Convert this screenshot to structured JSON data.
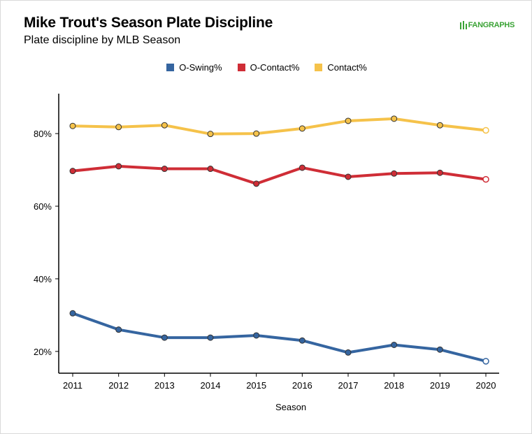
{
  "header": {
    "title": "Mike Trout's Season Plate Discipline",
    "subtitle": "Plate discipline by MLB Season",
    "logo_text": "FANGRAPHS",
    "logo_color": "#3aa335"
  },
  "chart_data": {
    "type": "line",
    "title": "Mike Trout's Season Plate Discipline",
    "subtitle": "Plate discipline by MLB Season",
    "xlabel": "Season",
    "ylabel": "",
    "x": [
      2011,
      2012,
      2013,
      2014,
      2015,
      2016,
      2017,
      2018,
      2019,
      2020
    ],
    "x_tick_labels": [
      "2011",
      "2012",
      "2013",
      "2014",
      "2015",
      "2016",
      "2017",
      "2018",
      "2019",
      "2020"
    ],
    "y_ticks": [
      20,
      40,
      60,
      80
    ],
    "y_tick_labels": [
      "20%",
      "40%",
      "60%",
      "80%"
    ],
    "ylim": [
      14,
      91
    ],
    "grid": false,
    "legend_position": "top-center",
    "series": [
      {
        "name": "O-Swing%",
        "color": "#3565a0",
        "values": [
          30.5,
          26.0,
          23.8,
          23.8,
          24.4,
          23.0,
          19.7,
          21.8,
          20.5,
          17.3
        ]
      },
      {
        "name": "O-Contact%",
        "color": "#cf2d36",
        "values": [
          69.7,
          71.0,
          70.3,
          70.3,
          66.2,
          70.6,
          68.1,
          69.0,
          69.2,
          67.4
        ]
      },
      {
        "name": "Contact%",
        "color": "#f5c24a",
        "values": [
          82.1,
          81.8,
          82.3,
          79.9,
          80.0,
          81.4,
          83.5,
          84.1,
          82.3,
          80.9
        ]
      }
    ]
  }
}
